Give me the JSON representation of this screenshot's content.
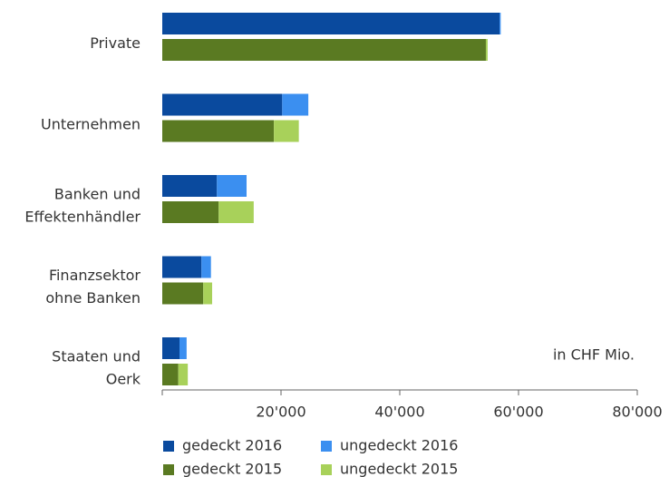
{
  "chart_data": {
    "type": "bar",
    "categories": [
      [
        "Private"
      ],
      [
        "Unternehmen"
      ],
      [
        "Banken und",
        "Effektenhändler"
      ],
      [
        "Finanzsektor",
        "ohne Banken"
      ],
      [
        "Staaten und",
        "Oerk"
      ]
    ],
    "series": [
      {
        "name": "gedeckt 2016",
        "color": "#0a4a9e",
        "values": [
          56800,
          20200,
          9200,
          6600,
          2900
        ]
      },
      {
        "name": "ungedeckt 2016",
        "color": "#3b8ff0",
        "values": [
          200,
          4400,
          5000,
          1600,
          1200
        ]
      },
      {
        "name": "gedeckt 2015",
        "color": "#5a7a22",
        "values": [
          54500,
          18800,
          9500,
          6900,
          2700
        ]
      },
      {
        "name": "ungedeckt 2015",
        "color": "#a8d15a",
        "values": [
          300,
          4200,
          5900,
          1500,
          1600
        ]
      }
    ],
    "xlim": [
      0,
      80000
    ],
    "xticks": [
      {
        "value": 20000,
        "label": "20'000"
      },
      {
        "value": 40000,
        "label": "40'000"
      },
      {
        "value": 60000,
        "label": "60'000"
      },
      {
        "value": 80000,
        "label": "80'000"
      }
    ],
    "annotation": "in CHF Mio."
  }
}
